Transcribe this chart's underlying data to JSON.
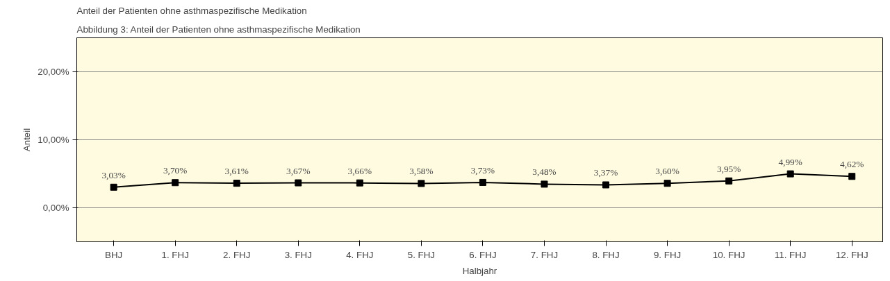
{
  "chart_data": {
    "type": "line",
    "title": "Anteil der Patienten ohne asthmaspezifische Medikation",
    "xlabel": "Halbjahr",
    "ylabel": "Anteil",
    "annotations": [
      "Abbildung 3: Anteil der Patienten ohne asthmaspezifische Medikation"
    ],
    "categories": [
      "BHJ",
      "1. FHJ",
      "2. FHJ",
      "3. FHJ",
      "4. FHJ",
      "5. FHJ",
      "6. FHJ",
      "7. FHJ",
      "8. FHJ",
      "9. FHJ",
      "10. FHJ",
      "11. FHJ",
      "12. FHJ"
    ],
    "series": [
      {
        "color": "#000000",
        "values": [
          3.03,
          3.7,
          3.61,
          3.67,
          3.66,
          3.58,
          3.73,
          3.48,
          3.37,
          3.6,
          3.95,
          4.99,
          4.62
        ],
        "value_labels": [
          "3,03%",
          "3,70%",
          "3,61%",
          "3,67%",
          "3,66%",
          "3,58%",
          "3,73%",
          "3,48%",
          "3,37%",
          "3,60%",
          "3,95%",
          "4,99%",
          "4,62%"
        ]
      }
    ],
    "ylim": [
      -5,
      25
    ],
    "yticks": [
      {
        "value": 0,
        "label": "0,00%"
      },
      {
        "value": 10,
        "label": "10,00%"
      },
      {
        "value": 20,
        "label": "20,00%"
      }
    ],
    "grid": "y",
    "marker": "square",
    "line_style": "solid"
  }
}
